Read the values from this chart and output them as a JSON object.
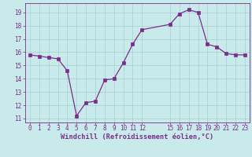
{
  "hours_data": [
    0,
    1,
    2,
    3,
    4,
    5,
    6,
    7,
    8,
    9,
    10,
    11,
    12,
    15,
    16,
    17,
    18,
    19,
    20,
    21,
    22,
    23
  ],
  "wc_data": [
    15.8,
    15.7,
    15.6,
    15.5,
    14.6,
    11.2,
    12.2,
    12.3,
    13.9,
    14.0,
    15.2,
    16.6,
    17.7,
    18.1,
    18.9,
    19.2,
    19.0,
    16.6,
    16.4,
    15.9,
    15.8,
    15.8
  ],
  "line_color": "#7b2d8b",
  "marker_color": "#7b2d8b",
  "bg_color": "#c8eaea",
  "grid_color": "#a8cece",
  "xlabel": "Windchill (Refroidissement éolien,°C)",
  "ylim": [
    10.7,
    19.7
  ],
  "xlim": [
    -0.5,
    23.5
  ],
  "yticks": [
    11,
    12,
    13,
    14,
    15,
    16,
    17,
    18,
    19
  ],
  "xticks": [
    0,
    1,
    2,
    3,
    4,
    5,
    6,
    7,
    8,
    9,
    10,
    11,
    12,
    15,
    16,
    17,
    18,
    19,
    20,
    21,
    22,
    23
  ],
  "font_color": "#7b2d8b",
  "tick_fontsize": 5.5,
  "xlabel_fontsize": 6.2
}
